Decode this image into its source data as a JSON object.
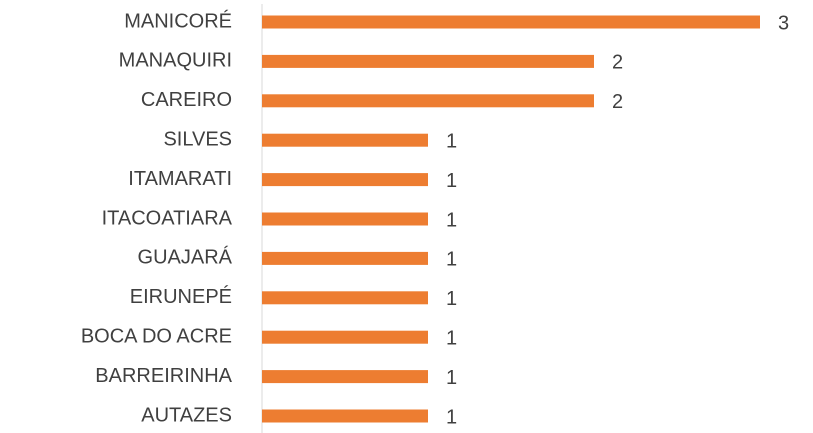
{
  "chart_data": {
    "type": "bar",
    "orientation": "horizontal",
    "categories": [
      "MANICORÉ",
      "MANAQUIRI",
      "CAREIRO",
      "SILVES",
      "ITAMARATI",
      "ITACOATIARA",
      "GUAJARÁ",
      "EIRUNEPÉ",
      "BOCA DO ACRE",
      "BARREIRINHA",
      "AUTAZES"
    ],
    "values": [
      3,
      2,
      2,
      1,
      1,
      1,
      1,
      1,
      1,
      1,
      1
    ],
    "color": "#ed7d31",
    "xlim": [
      0,
      3
    ]
  }
}
